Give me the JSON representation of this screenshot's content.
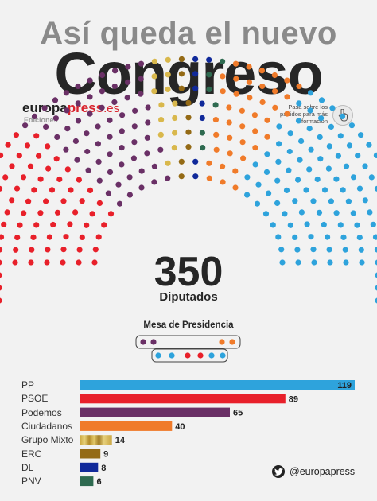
{
  "header": {
    "line1": "Así queda el nuevo",
    "line2": "Congreso"
  },
  "brand": {
    "part1": "europa",
    "part2": "press",
    "part3": ".es",
    "subtitle": "Ediciones"
  },
  "hint": {
    "text": "Pasa sobre los partidos para más información",
    "icon": "pointer-hand-icon"
  },
  "summary": {
    "total": "350",
    "label": "Diputados"
  },
  "mesa": {
    "title": "Mesa de Presidencia",
    "row1": [
      "Podemos",
      "Podemos",
      "Ciudadanos",
      "Ciudadanos"
    ],
    "row2": [
      "PP",
      "PP",
      "PSOE",
      "PSOE",
      "PP",
      "PP"
    ]
  },
  "social": {
    "handle": "@europapress",
    "icon": "twitter-icon"
  },
  "colors": {
    "PP": "#2ea3dc",
    "PSOE": "#e8202a",
    "Podemos": "#6a3066",
    "Ciudadanos": "#f07b2a",
    "Grupo Mixto": "#d9b84c",
    "ERC": "#946a15",
    "DL": "#10299a",
    "PNV": "#2e6a50"
  },
  "chart_data": {
    "type": "bar",
    "orientation": "horizontal",
    "categories": [
      "PP",
      "PSOE",
      "Podemos",
      "Ciudadanos",
      "Grupo Mixto",
      "ERC",
      "DL",
      "PNV"
    ],
    "values": [
      119,
      89,
      65,
      40,
      14,
      9,
      8,
      6
    ],
    "xlim": [
      0,
      119
    ],
    "grid": false,
    "legend": "none"
  }
}
